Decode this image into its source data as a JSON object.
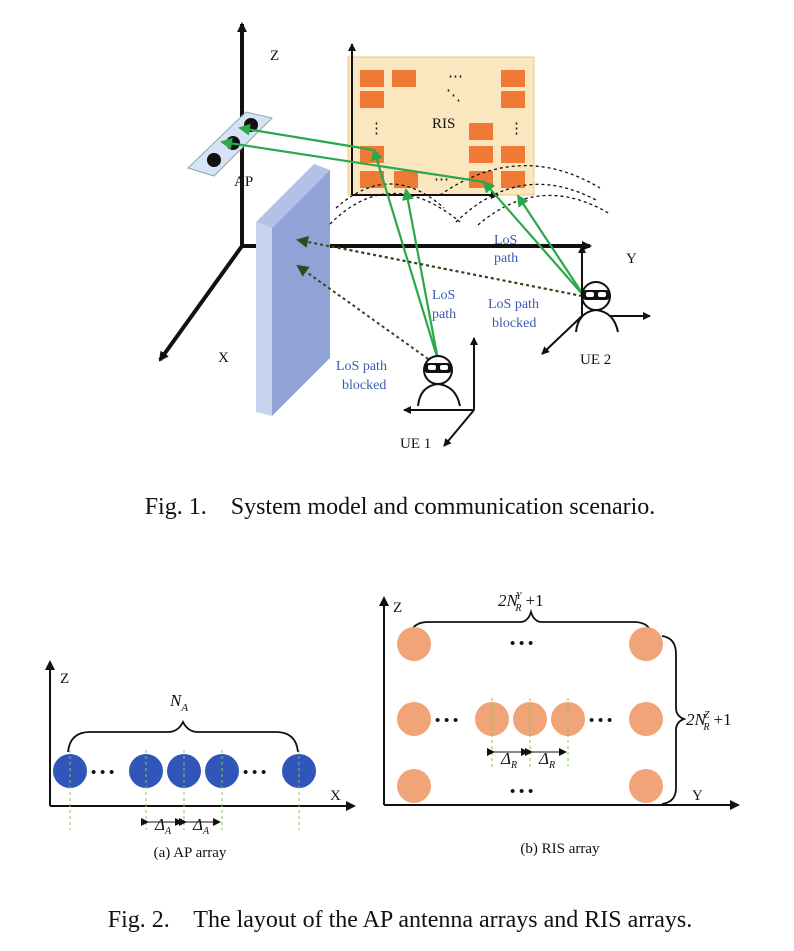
{
  "fig1": {
    "axis_z": "Z",
    "axis_y": "Y",
    "axis_x": "X",
    "ap_label": "AP",
    "ris_label": "RIS",
    "ris_dots": [
      "⋯",
      "⋮",
      "⋮",
      "⋯",
      "⋱"
    ],
    "los_path_ue1": [
      "LoS",
      "path"
    ],
    "los_path_ue2": [
      "LoS",
      "path"
    ],
    "blocked_ue1": [
      "LoS path",
      "blocked"
    ],
    "blocked_ue2": [
      "LoS path",
      "blocked"
    ],
    "ue1_label": "UE 1",
    "ue2_label": "UE 2",
    "caption": "Fig. 1.    System model and communication scenario."
  },
  "fig2": {
    "a": {
      "axis_z": "Z",
      "axis_x": "X",
      "size_label": "N",
      "size_sub": "A",
      "dots": "• • •",
      "delta": "Δ",
      "delta_sub": "A",
      "caption": "(a) AP array"
    },
    "b": {
      "axis_z": "Z",
      "axis_y": "Y",
      "top_label": "2N",
      "top_sup": "Y",
      "top_sub": "R",
      "top_tail": "+1",
      "right_label": "2N",
      "right_sup": "Z",
      "right_sub": "R",
      "right_tail": "+1",
      "dots": "• • •",
      "delta": "Δ",
      "delta_sub": "R",
      "caption": "(b) RIS array"
    },
    "caption": "Fig. 2.    The layout of the AP antenna arrays and RIS arrays."
  },
  "colors": {
    "ap_circle": "#2f56b8",
    "ris_circle": "#f0a477",
    "ris_element": "#ee7a36",
    "ris_panel": "#fbe7bf",
    "wall": "#8fa3d6",
    "los_green": "#2aa84a",
    "blocked_dark": "#2e4a1e"
  }
}
